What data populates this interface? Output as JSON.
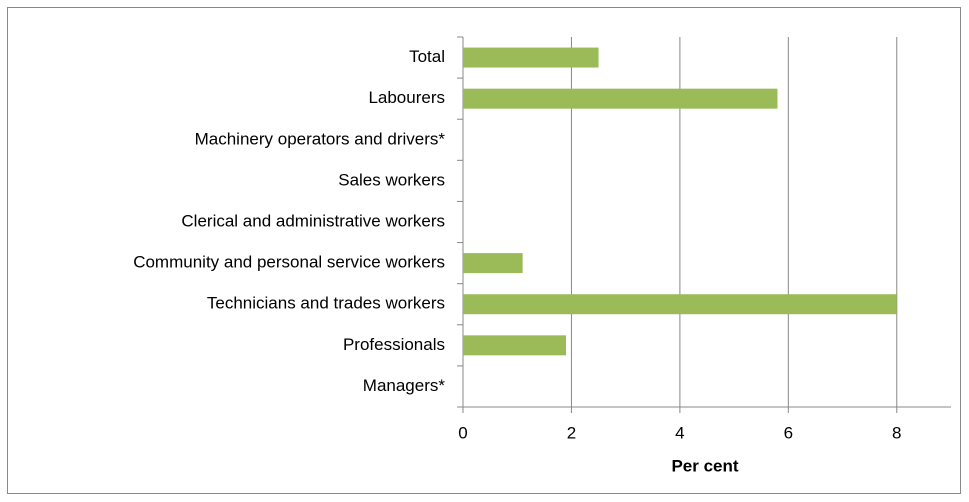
{
  "chart_data": {
    "type": "hbar",
    "categories": [
      "Total",
      "Labourers",
      "Machinery operators and drivers*",
      "Sales workers",
      "Clerical and administrative workers",
      "Community and personal service workers",
      "Technicians and trades workers",
      "Professionals",
      "Managers*"
    ],
    "values": [
      2.5,
      5.8,
      null,
      0,
      0,
      1.1,
      8.0,
      1.9,
      null
    ],
    "color": "#9bbb59",
    "xlabel": "Per cent",
    "xlim": [
      0,
      9
    ],
    "xticks": [
      0,
      2,
      4,
      6,
      8
    ],
    "grid": true
  }
}
